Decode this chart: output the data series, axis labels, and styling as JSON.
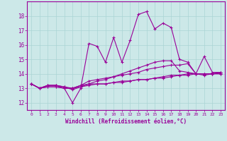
{
  "title": "",
  "xlabel": "Windchill (Refroidissement éolien,°C)",
  "ylabel": "",
  "bg_color": "#cce8e8",
  "line_color": "#990099",
  "x_values": [
    0,
    1,
    2,
    3,
    4,
    5,
    6,
    7,
    8,
    9,
    10,
    11,
    12,
    13,
    14,
    15,
    16,
    17,
    18,
    19,
    20,
    21,
    22,
    23
  ],
  "series": [
    [
      13.3,
      13.0,
      13.2,
      13.2,
      13.0,
      12.0,
      13.0,
      16.1,
      15.9,
      14.8,
      16.5,
      14.8,
      16.3,
      18.1,
      18.3,
      17.1,
      17.5,
      17.2,
      15.0,
      14.8,
      14.0,
      15.2,
      14.1,
      14.1
    ],
    [
      13.3,
      13.0,
      13.2,
      13.2,
      13.1,
      13.0,
      13.2,
      13.5,
      13.6,
      13.7,
      13.8,
      13.9,
      14.0,
      14.1,
      14.3,
      14.4,
      14.5,
      14.6,
      14.6,
      14.7,
      14.0,
      14.0,
      14.0,
      14.1
    ],
    [
      13.3,
      13.0,
      13.1,
      13.1,
      13.0,
      13.0,
      13.1,
      13.2,
      13.3,
      13.3,
      13.4,
      13.5,
      13.5,
      13.6,
      13.6,
      13.7,
      13.8,
      13.9,
      13.9,
      14.0,
      14.0,
      13.9,
      14.0,
      14.0
    ],
    [
      13.3,
      13.0,
      13.1,
      13.1,
      13.0,
      13.0,
      13.2,
      13.3,
      13.3,
      13.3,
      13.4,
      13.4,
      13.5,
      13.6,
      13.6,
      13.7,
      13.7,
      13.8,
      13.9,
      13.9,
      14.0,
      14.0,
      14.0,
      14.0
    ],
    [
      13.3,
      13.0,
      13.2,
      13.2,
      13.1,
      12.9,
      13.1,
      13.3,
      13.5,
      13.6,
      13.8,
      14.0,
      14.2,
      14.4,
      14.6,
      14.8,
      14.9,
      14.9,
      14.2,
      14.1,
      14.0,
      14.0,
      14.0,
      14.1
    ]
  ],
  "ylim": [
    11.5,
    19.0
  ],
  "xlim_min": -0.5,
  "xlim_max": 23.5,
  "yticks": [
    12,
    13,
    14,
    15,
    16,
    17,
    18
  ],
  "xticks": [
    0,
    1,
    2,
    3,
    4,
    5,
    6,
    7,
    8,
    9,
    10,
    11,
    12,
    13,
    14,
    15,
    16,
    17,
    18,
    19,
    20,
    21,
    22,
    23
  ],
  "grid_color": "#aad4d4",
  "tick_color": "#990099",
  "label_color": "#990099",
  "marker": "+"
}
